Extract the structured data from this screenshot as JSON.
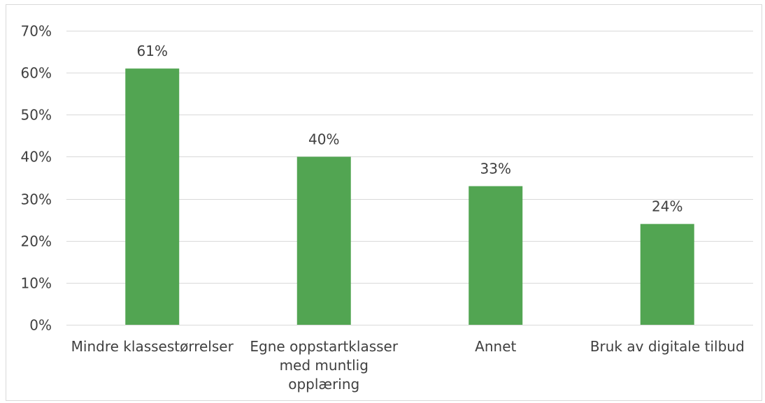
{
  "chart_data": {
    "type": "bar",
    "categories": [
      [
        "Mindre klassestørrelser"
      ],
      [
        "Egne oppstartklasser",
        "med muntlig",
        "opplæring"
      ],
      [
        "Annet"
      ],
      [
        "Bruk av digitale tilbud"
      ]
    ],
    "values": [
      61,
      40,
      33,
      24
    ],
    "value_labels": [
      "61%",
      "40%",
      "33%",
      "24%"
    ],
    "ylim": [
      0,
      70
    ],
    "y_ticks": [
      0,
      10,
      20,
      30,
      40,
      50,
      60,
      70
    ],
    "y_tick_labels": [
      "0%",
      "10%",
      "20%",
      "30%",
      "40%",
      "50%",
      "60%",
      "70%"
    ],
    "title": "",
    "xlabel": "",
    "ylabel": "",
    "grid": true,
    "legend": "none",
    "bar_color": "#52a552",
    "grid_color": "#d9d9d9",
    "text_color": "#404040"
  }
}
